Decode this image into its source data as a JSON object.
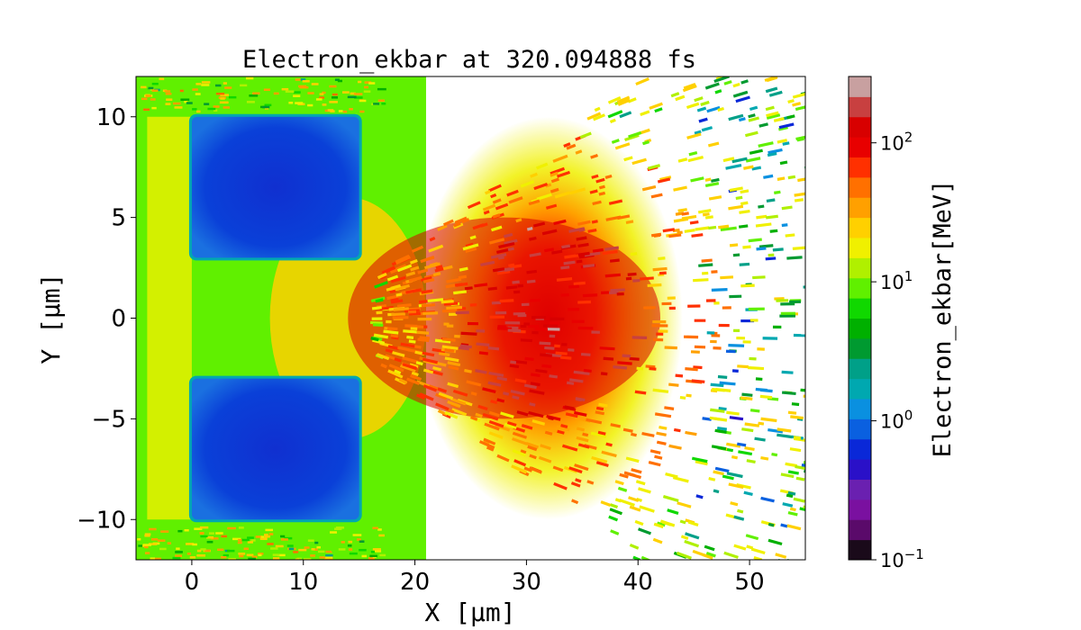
{
  "chart_data": {
    "type": "heatmap",
    "title": "Electron_ekbar at 320.094888 fs",
    "xlabel": "X [μm]",
    "ylabel": "Y [μm]",
    "xlim": [
      -5,
      55
    ],
    "ylim": [
      -12,
      12
    ],
    "x_ticks": [
      0,
      10,
      20,
      30,
      40,
      50
    ],
    "x_tick_labels": [
      "0",
      "10",
      "20",
      "30",
      "40",
      "50"
    ],
    "y_ticks": [
      -10,
      -5,
      0,
      5,
      10
    ],
    "y_tick_labels": [
      "−10",
      "−5",
      "0",
      "5",
      "10"
    ],
    "colorbar": {
      "label": "Electron_ekbar[MeV]",
      "scale": "log",
      "range": [
        0.1,
        300
      ],
      "ticks": [
        0.1,
        1,
        10,
        100
      ],
      "tick_labels": [
        {
          "base": "10",
          "exp": "−1"
        },
        {
          "base": "10",
          "exp": "0"
        },
        {
          "base": "10",
          "exp": "1"
        },
        {
          "base": "10",
          "exp": "2"
        }
      ],
      "colormap": [
        "#1a0a1a",
        "#5a0a6a",
        "#7a10a0",
        "#6a20b0",
        "#2a10c8",
        "#0a28d8",
        "#0a60e0",
        "#0a90e0",
        "#00a8b0",
        "#00a088",
        "#009a30",
        "#00b000",
        "#10d800",
        "#60f000",
        "#b0f000",
        "#f0f000",
        "#ffd000",
        "#ffa000",
        "#ff7000",
        "#ff3000",
        "#e80000",
        "#d80000",
        "#c84040",
        "#c8a0a0"
      ]
    },
    "regions": [
      {
        "shape": "rect",
        "x": [
          0,
          15
        ],
        "y": [
          3,
          10
        ],
        "value": 0.6
      },
      {
        "shape": "rect",
        "x": [
          0,
          15
        ],
        "y": [
          -10,
          -3
        ],
        "value": 0.6
      },
      {
        "shape": "rect",
        "x": [
          0,
          15
        ],
        "y": [
          -12,
          12
        ],
        "value": 8
      },
      {
        "shape": "radial",
        "center": [
          32,
          0
        ],
        "value": 120
      }
    ],
    "grid": false
  }
}
